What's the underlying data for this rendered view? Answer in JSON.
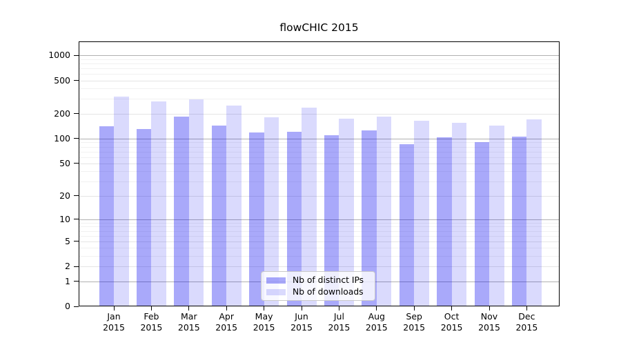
{
  "page": {
    "background": "#ffffff"
  },
  "chart_data": {
    "type": "bar",
    "title": "flowCHIC 2015",
    "categories": [
      "Jan",
      "Feb",
      "Mar",
      "Apr",
      "May",
      "Jun",
      "Jul",
      "Aug",
      "Sep",
      "Oct",
      "Nov",
      "Dec"
    ],
    "category_year": "2015",
    "series": [
      {
        "name": "Nb of distinct IPs",
        "fill": "rgba(8,8,241,0.35)",
        "color_hex": "#a8a8f7",
        "values": [
          142,
          130,
          183,
          145,
          119,
          122,
          111,
          126,
          86,
          103,
          91,
          106
        ]
      },
      {
        "name": "Nb of downloads",
        "fill": "rgba(8,8,241,0.15)",
        "color_hex": "#dcdcfa",
        "values": [
          320,
          280,
          298,
          248,
          180,
          238,
          175,
          184,
          165,
          155,
          143,
          170
        ]
      }
    ],
    "yscale": "log1p",
    "yticks": [
      0,
      1,
      2,
      5,
      10,
      20,
      50,
      100,
      200,
      500,
      1000
    ],
    "ylim": [
      0,
      1465
    ],
    "xlabel": "",
    "ylabel": "",
    "grid": "horizontal",
    "legend_position": "lower-center-inside",
    "colors": {
      "grid_decade": "#b0b0b0",
      "grid_labeled": "#e4e4e4",
      "grid_minor": "#f1f1f1",
      "axis": "#000000",
      "text": "#000000"
    }
  }
}
